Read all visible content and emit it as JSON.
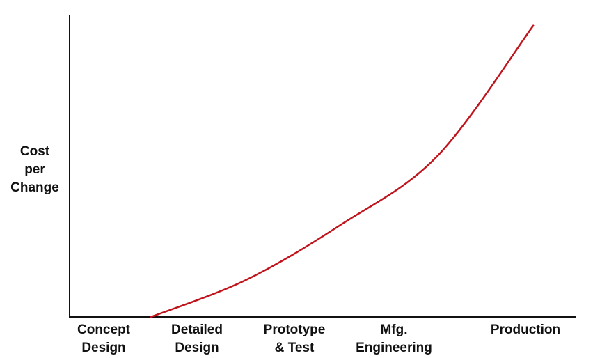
{
  "chart_data": {
    "type": "line",
    "title": "",
    "ylabel_lines": [
      "Cost",
      "per",
      "Change"
    ],
    "categories": [
      [
        "Concept",
        "Design"
      ],
      [
        "Detailed",
        "Design"
      ],
      [
        "Prototype",
        "& Test"
      ],
      [
        "Mfg.",
        "Engineering"
      ],
      [
        "Production",
        ""
      ]
    ],
    "x": [
      0,
      1,
      2,
      3,
      4
    ],
    "values": [
      0,
      1.2,
      3.0,
      5.2,
      9.4
    ],
    "xlim": [
      -0.85,
      4.45
    ],
    "ylim": [
      0,
      10
    ],
    "y_ticks_shown": false,
    "grid": false,
    "legend": "none",
    "curve": "exponential",
    "colors": {
      "curve": "#c0141c",
      "axis": "#111111",
      "text": "#111111"
    }
  }
}
